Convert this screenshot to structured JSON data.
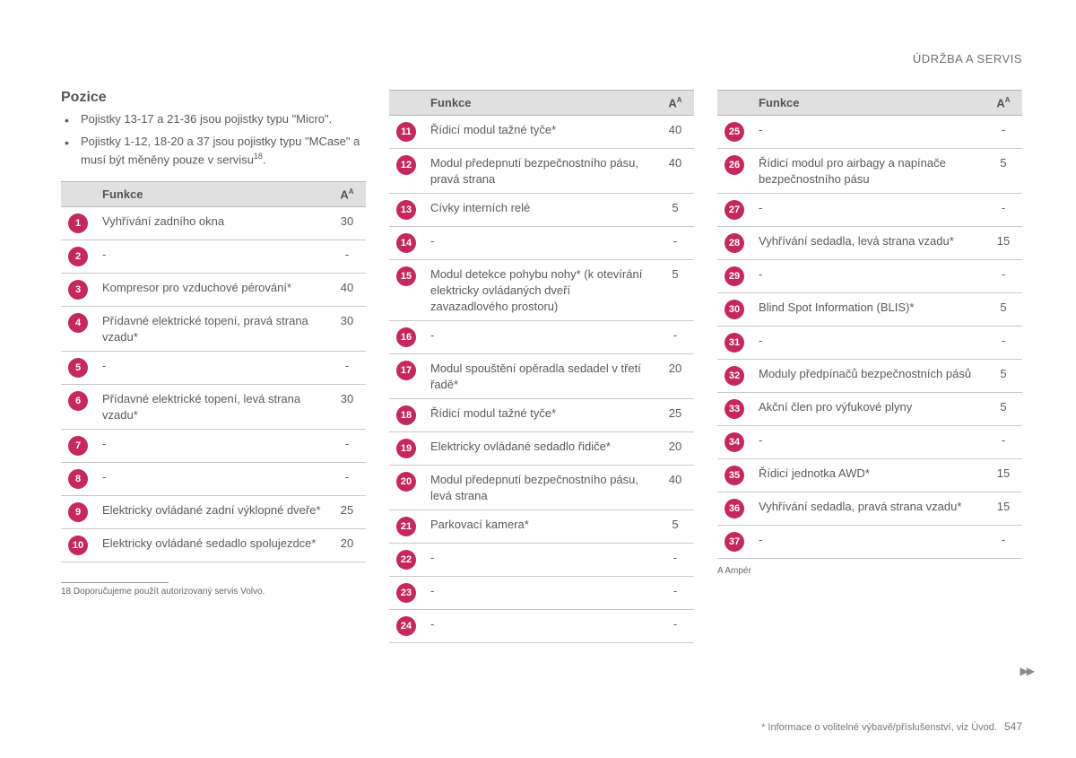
{
  "header": {
    "section": "ÚDRŽBA A SERVIS"
  },
  "intro": {
    "heading": "Pozice",
    "bullets": [
      "Pojistky 13-17 a 21-36 jsou pojistky typu \"Micro\".",
      "Pojistky 1-12, 18-20 a 37 jsou pojistky typu \"MCase\" a musí být měněny pouze v servisu"
    ],
    "bullet2_sup": "18"
  },
  "columns": {
    "funkce": "Funkce",
    "amp_label": "A",
    "amp_sup": "A"
  },
  "badge_color": "#c4285d",
  "tables": {
    "left": [
      {
        "n": "1",
        "f": "Vyhřívání zadního okna",
        "a": "30"
      },
      {
        "n": "2",
        "f": "-",
        "a": "-"
      },
      {
        "n": "3",
        "f": "Kompresor pro vzduchové pérování*",
        "a": "40"
      },
      {
        "n": "4",
        "f": "Přídavné elektrické topení, pravá strana vzadu*",
        "a": "30"
      },
      {
        "n": "5",
        "f": "-",
        "a": "-"
      },
      {
        "n": "6",
        "f": "Přídavné elektrické topení, levá strana vzadu*",
        "a": "30"
      },
      {
        "n": "7",
        "f": "-",
        "a": "-"
      },
      {
        "n": "8",
        "f": "-",
        "a": "-"
      },
      {
        "n": "9",
        "f": "Elektricky ovládané zadní výklopné dveře*",
        "a": "25"
      },
      {
        "n": "10",
        "f": "Elektricky ovládané sedadlo spolujezdce*",
        "a": "20"
      }
    ],
    "mid": [
      {
        "n": "11",
        "f": "Řídicí modul tažné tyče*",
        "a": "40"
      },
      {
        "n": "12",
        "f": "Modul předepnutí bezpečnostního pásu, pravá strana",
        "a": "40"
      },
      {
        "n": "13",
        "f": "Cívky interních relé",
        "a": "5"
      },
      {
        "n": "14",
        "f": "-",
        "a": "-"
      },
      {
        "n": "15",
        "f": "Modul detekce pohybu nohy* (k otevírání elektricky ovládaných dveří zavazadlového prostoru)",
        "a": "5"
      },
      {
        "n": "16",
        "f": "-",
        "a": "-"
      },
      {
        "n": "17",
        "f": "Modul spouštění opěradla sedadel v třetí řadě*",
        "a": "20"
      },
      {
        "n": "18",
        "f": "Řídicí modul tažné tyče*",
        "a": "25"
      },
      {
        "n": "19",
        "f": "Elektricky ovládané sedadlo řidiče*",
        "a": "20"
      },
      {
        "n": "20",
        "f": "Modul předepnutí bezpečnostního pásu, levá strana",
        "a": "40"
      },
      {
        "n": "21",
        "f": "Parkovací kamera*",
        "a": "5"
      },
      {
        "n": "22",
        "f": "-",
        "a": "-"
      },
      {
        "n": "23",
        "f": "-",
        "a": "-"
      },
      {
        "n": "24",
        "f": "-",
        "a": "-"
      }
    ],
    "right": [
      {
        "n": "25",
        "f": "-",
        "a": "-"
      },
      {
        "n": "26",
        "f": "Řídicí modul pro airbagy a napínače bezpečnostního pásu",
        "a": "5"
      },
      {
        "n": "27",
        "f": "-",
        "a": "-"
      },
      {
        "n": "28",
        "f": "Vyhřívání sedadla, levá strana vzadu*",
        "a": "15"
      },
      {
        "n": "29",
        "f": "-",
        "a": "-"
      },
      {
        "n": "30",
        "f": "Blind Spot Information (BLIS)*",
        "a": "5"
      },
      {
        "n": "31",
        "f": "-",
        "a": "-"
      },
      {
        "n": "32",
        "f": "Moduly předpínačů bezpečnostních pásů",
        "a": "5"
      },
      {
        "n": "33",
        "f": "Akční člen pro výfukové plyny",
        "a": "5"
      },
      {
        "n": "34",
        "f": "-",
        "a": "-"
      },
      {
        "n": "35",
        "f": "Řídicí jednotka AWD*",
        "a": "15"
      },
      {
        "n": "36",
        "f": "Vyhřívání sedadla, pravá strana vzadu*",
        "a": "15"
      },
      {
        "n": "37",
        "f": "-",
        "a": "-"
      }
    ]
  },
  "footnotes": {
    "f18_label": "18",
    "f18_text": "Doporučujeme použít autorizovaný servis Volvo.",
    "fA_label": "A",
    "fA_text": "Ampér"
  },
  "bottom": {
    "note": "* Informace o volitelné výbavě/příslušenství, viz Úvod.",
    "page": "547"
  }
}
